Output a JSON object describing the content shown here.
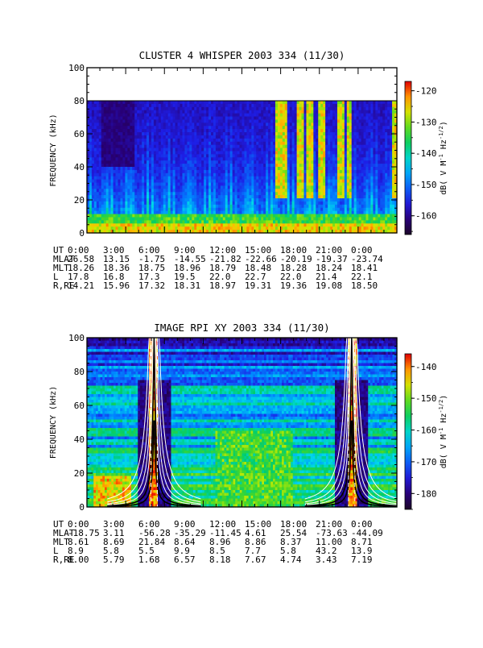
{
  "chart_data": [
    {
      "type": "heatmap",
      "title": "CLUSTER 4 WHISPER 2003 334 (11/30)",
      "ylabel": "FREQUENCY (kHz)",
      "ylim": [
        0,
        100
      ],
      "y_ticks": [
        0,
        20,
        40,
        60,
        80,
        100
      ],
      "xlim_hours": [
        0,
        24
      ],
      "data_top_khz": 80,
      "colorbar": {
        "label": "dB( V M^-1 Hz^-1/2)",
        "ticks": [
          -120,
          -130,
          -140,
          -150,
          -160
        ],
        "range": [
          -166,
          -117
        ]
      },
      "ephemeris": {
        "row_labels": [
          "UT",
          "MLAT",
          "MLT",
          "L",
          "R,RE"
        ],
        "columns": [
          {
            "UT": "0:00",
            "MLAT": "26.58",
            "MLT": "18.26",
            "L": "17.8",
            "R,RE": "14.21"
          },
          {
            "UT": "3:00",
            "MLAT": "13.15",
            "MLT": "18.36",
            "L": "16.8",
            "R,RE": "15.96"
          },
          {
            "UT": "6:00",
            "MLAT": "-1.75",
            "MLT": "18.75",
            "L": "17.3",
            "R,RE": "17.32"
          },
          {
            "UT": "9:00",
            "MLAT": "-14.55",
            "MLT": "18.96",
            "L": "19.5",
            "R,RE": "18.31"
          },
          {
            "UT": "12:00",
            "MLAT": "-21.82",
            "MLT": "18.79",
            "L": "22.0",
            "R,RE": "18.97"
          },
          {
            "UT": "15:00",
            "MLAT": "-22.66",
            "MLT": "18.48",
            "L": "22.7",
            "R,RE": "19.31"
          },
          {
            "UT": "18:00",
            "MLAT": "-20.19",
            "MLT": "18.28",
            "L": "22.0",
            "R,RE": "19.36"
          },
          {
            "UT": "21:00",
            "MLAT": "-19.37",
            "MLT": "18.24",
            "L": "21.4",
            "R,RE": "19.08"
          },
          {
            "UT": "0:00",
            "MLAT": "-23.74",
            "MLT": "18.41",
            "L": "22.1",
            "R,RE": "18.50"
          }
        ]
      },
      "bright_bursts_hours": [
        14.9,
        15.3,
        16.5,
        17.3,
        18.2,
        19.6,
        20.3,
        23.8
      ]
    },
    {
      "type": "heatmap",
      "title": "IMAGE RPI XY 2003 334 (11/30)",
      "ylabel": "FREQUENCY (kHz)",
      "ylim": [
        0,
        100
      ],
      "y_ticks": [
        0,
        20,
        40,
        60,
        80,
        100
      ],
      "xlim_hours": [
        0,
        24
      ],
      "colorbar": {
        "label": "dB( V M^-1 Hz^-1/2)",
        "ticks": [
          -140,
          -150,
          -160,
          -170,
          -180
        ],
        "range": [
          -185,
          -136
        ]
      },
      "ephemeris": {
        "row_labels": [
          "UT",
          "MLAT",
          "MLT",
          "L",
          "R,RE"
        ],
        "columns": [
          {
            "UT": "0:00",
            "MLAT": "-18.75",
            "MLT": "8.61",
            "L": "8.9",
            "R,RE": "8.00"
          },
          {
            "UT": "3:00",
            "MLAT": "3.11",
            "MLT": "8.69",
            "L": "5.8",
            "R,RE": "5.79"
          },
          {
            "UT": "6:00",
            "MLAT": "-56.28",
            "MLT": "21.84",
            "L": "5.5",
            "R,RE": "1.68"
          },
          {
            "UT": "9:00",
            "MLAT": "-35.29",
            "MLT": "8.64",
            "L": "9.9",
            "R,RE": "6.57"
          },
          {
            "UT": "12:00",
            "MLAT": "-11.45",
            "MLT": "8.96",
            "L": "8.5",
            "R,RE": "8.18"
          },
          {
            "UT": "15:00",
            "MLAT": "4.61",
            "MLT": "8.86",
            "L": "7.7",
            "R,RE": "7.67"
          },
          {
            "UT": "18:00",
            "MLAT": "25.54",
            "MLT": "8.37",
            "L": "5.8",
            "R,RE": "4.74"
          },
          {
            "UT": "21:00",
            "MLAT": "-73.63",
            "MLT": "11.00",
            "L": "43.2",
            "R,RE": "3.43"
          },
          {
            "UT": "0:00",
            "MLAT": "-44.09",
            "MLT": "8.71",
            "L": "13.9",
            "R,RE": "7.19"
          }
        ]
      },
      "perigee_hours": [
        5.2,
        20.5
      ]
    }
  ]
}
